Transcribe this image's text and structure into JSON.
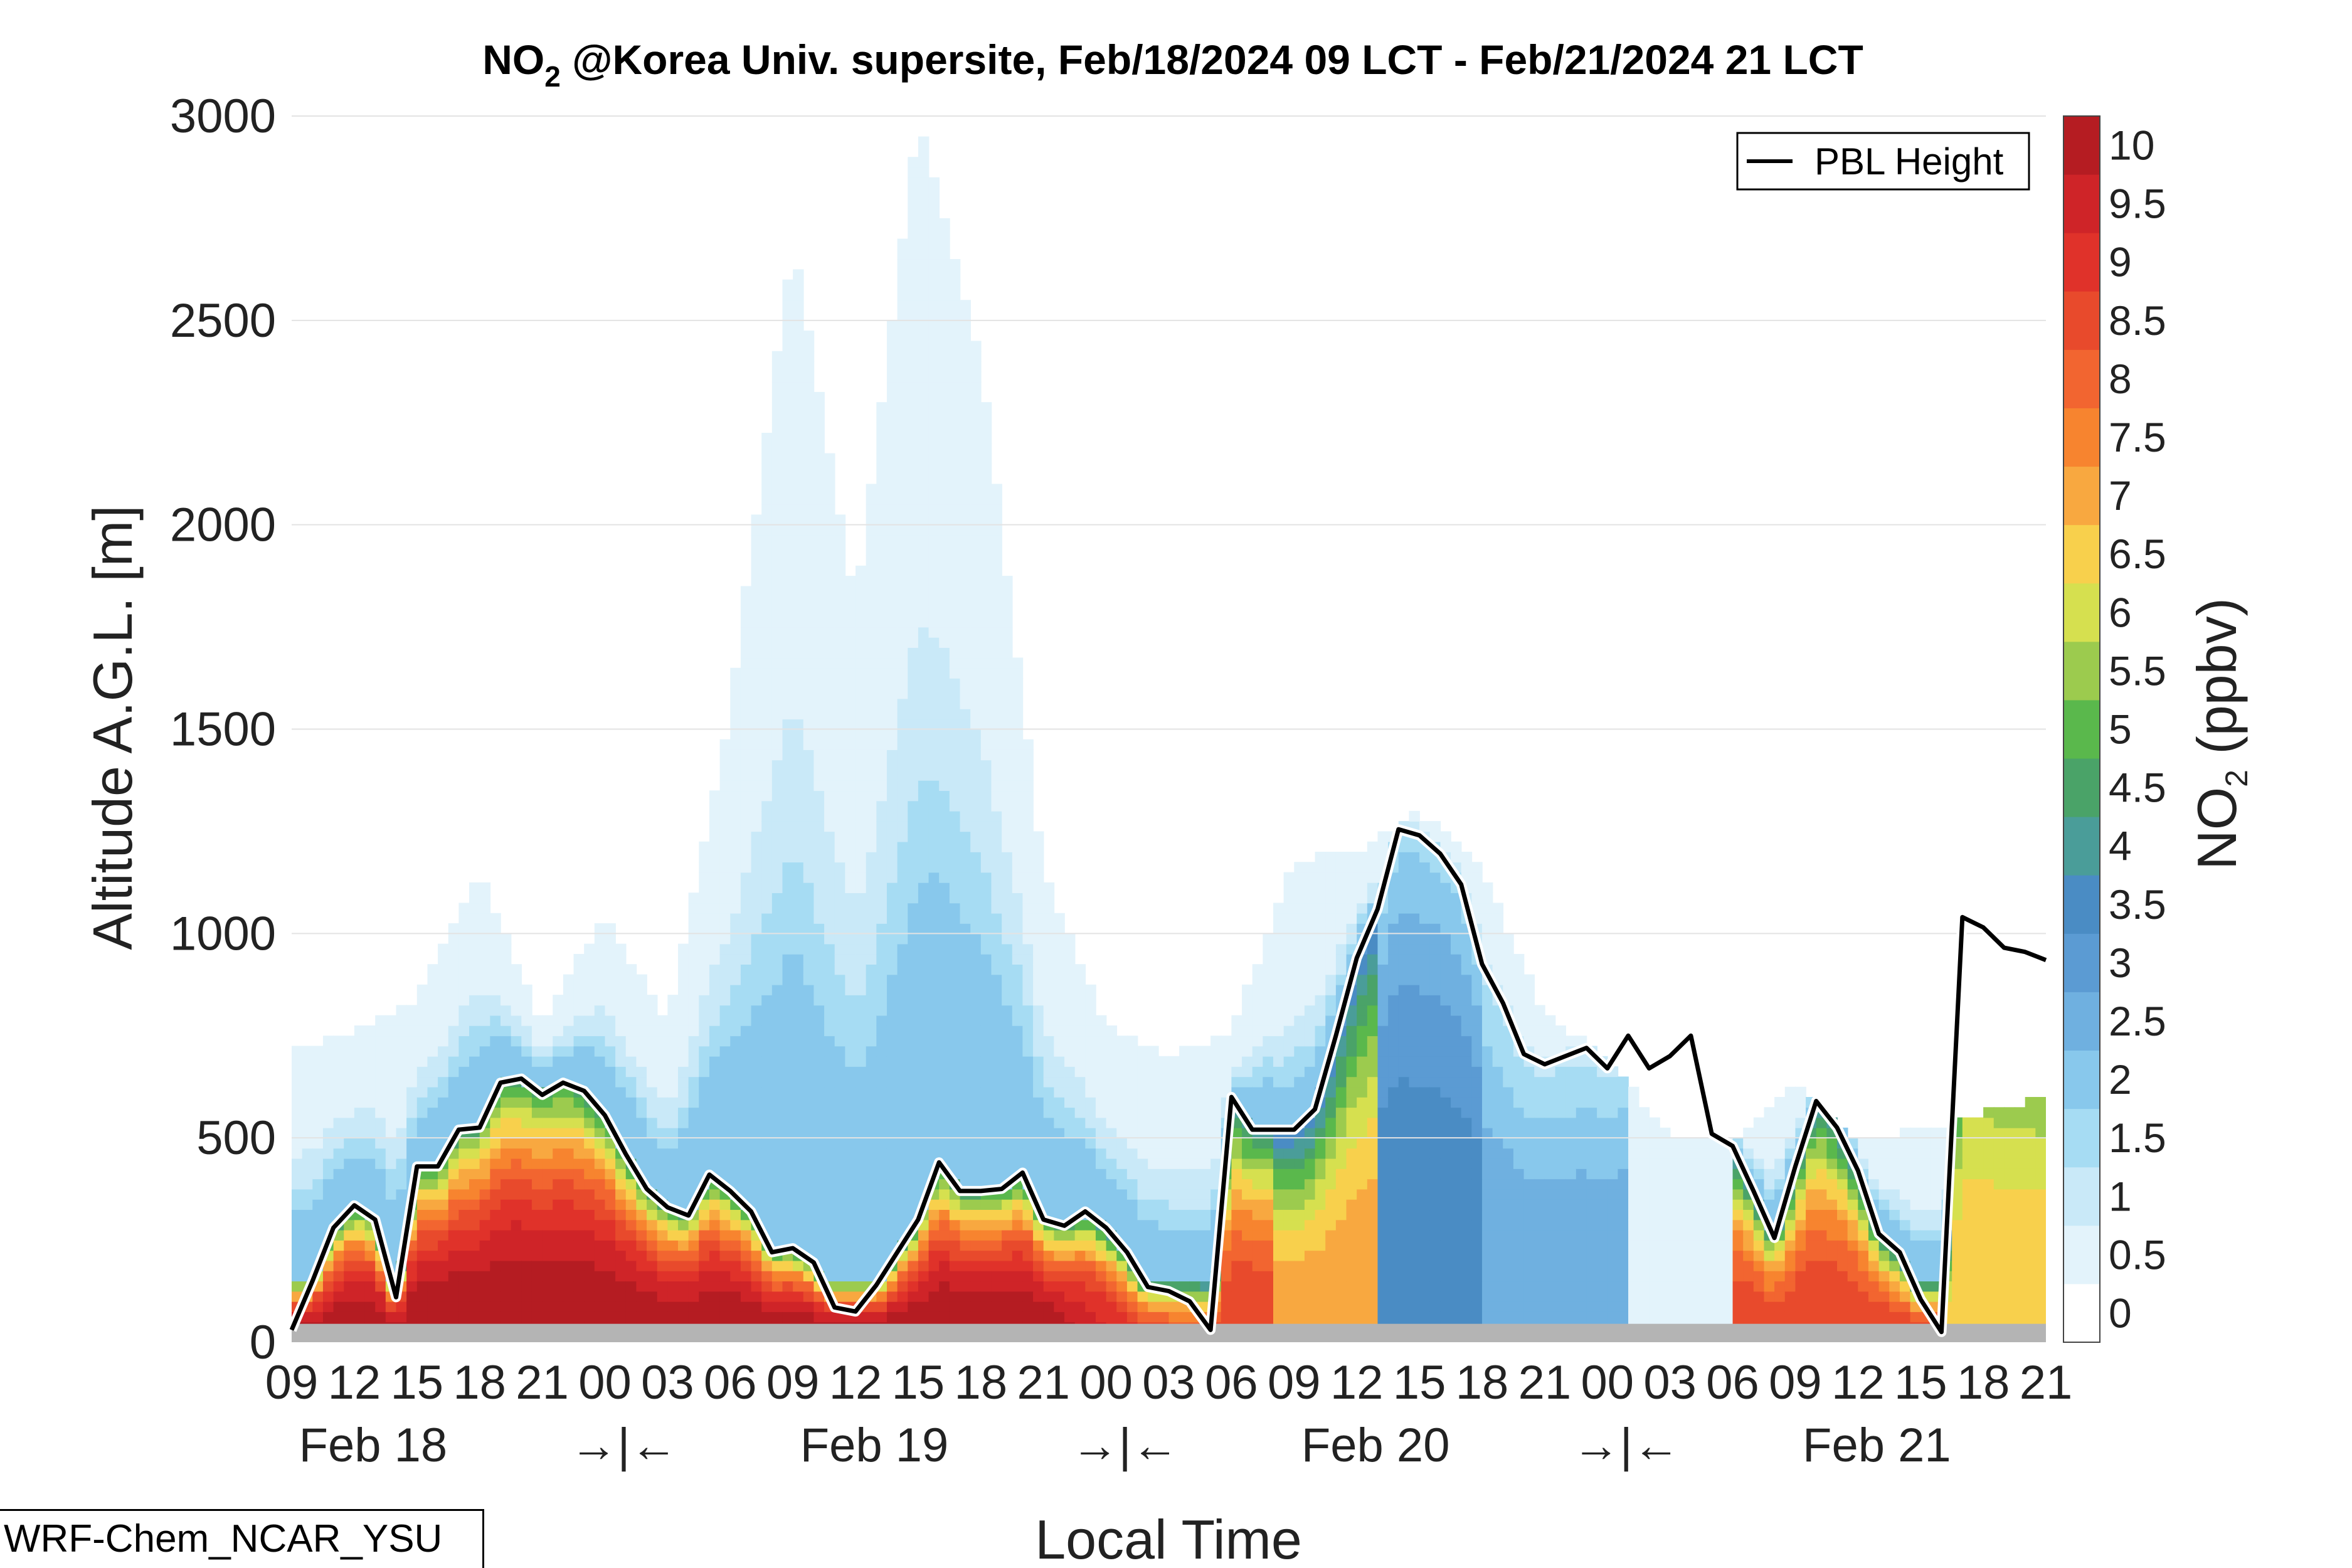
{
  "chart_data": {
    "type": "heatmap",
    "title_main": "NO",
    "title_sub": "2",
    "title_rest": " @Korea Univ. supersite, Feb/18/2024 09 LCT - Feb/21/2024 21 LCT",
    "xlabel": "Local Time",
    "ylabel": "Altitude A.G.L. [m]",
    "ylim": [
      0,
      3000
    ],
    "y_ticks": [
      "0",
      "500",
      "1000",
      "1500",
      "2000",
      "2500",
      "3000"
    ],
    "x_tick_labels": [
      "09",
      "12",
      "15",
      "18",
      "21",
      "00",
      "03",
      "06",
      "09",
      "12",
      "15",
      "18",
      "21",
      "00",
      "03",
      "06",
      "09",
      "12",
      "15",
      "18",
      "21",
      "00",
      "03",
      "06",
      "09",
      "12",
      "15",
      "18",
      "21"
    ],
    "date_labels": [
      {
        "label": "Feb 18",
        "hour": 3
      },
      {
        "label": "→|←",
        "hour": 15
      },
      {
        "label": "Feb 19",
        "hour": 27
      },
      {
        "label": "→|←",
        "hour": 39
      },
      {
        "label": "Feb 20",
        "hour": 51
      },
      {
        "label": "→|←",
        "hour": 63
      },
      {
        "label": "Feb 21",
        "hour": 75
      }
    ],
    "colorbar": {
      "label_main": "NO",
      "label_sub": "2",
      "label_rest": " (ppbv)",
      "min": 0,
      "max": 10.5,
      "tick_labels": [
        "0",
        "0.5",
        "1",
        "1.5",
        "2",
        "2.5",
        "3",
        "3.5",
        "4",
        "4.5",
        "5",
        "5.5",
        "6",
        "6.5",
        "7",
        "7.5",
        "8",
        "8.5",
        "9",
        "9.5",
        "10"
      ],
      "colors": [
        "#ffffff",
        "#e3f3fb",
        "#c9e9f8",
        "#a6dcf3",
        "#88c8ec",
        "#6fb0e0",
        "#5b9bd3",
        "#4a8cc4",
        "#4a9d99",
        "#4aa368",
        "#5ab84c",
        "#9ccb4e",
        "#d6e04f",
        "#f8d04c",
        "#f8a840",
        "#f7842f",
        "#f26530",
        "#e84a2c",
        "#e0322a",
        "#cf2428",
        "#b51c22"
      ]
    },
    "legend": {
      "position": "top-right",
      "entries": [
        "PBL Height"
      ]
    },
    "pbl_height": {
      "name": "PBL Height",
      "hours": [
        0,
        1,
        2,
        3,
        4,
        5,
        6,
        7,
        8,
        9,
        10,
        11,
        12,
        13,
        14,
        15,
        16,
        17,
        18,
        19,
        20,
        21,
        22,
        23,
        24,
        25,
        26,
        27,
        28,
        29,
        30,
        31,
        32,
        33,
        34,
        35,
        36,
        37,
        38,
        39,
        40,
        41,
        42,
        43,
        44,
        45,
        46,
        47,
        48,
        49,
        50,
        51,
        52,
        53,
        54,
        55,
        56,
        57,
        58,
        59,
        60,
        61,
        62,
        63,
        64,
        65,
        66,
        67,
        68,
        69,
        70,
        71,
        72,
        73,
        74,
        75,
        76,
        77,
        78,
        79,
        80,
        81,
        82,
        83,
        84
      ],
      "values": [
        30,
        150,
        280,
        335,
        300,
        110,
        430,
        430,
        520,
        525,
        635,
        645,
        605,
        635,
        615,
        555,
        460,
        375,
        330,
        310,
        410,
        370,
        320,
        220,
        230,
        195,
        85,
        75,
        140,
        220,
        300,
        440,
        370,
        370,
        375,
        415,
        300,
        285,
        320,
        280,
        220,
        135,
        125,
        100,
        30,
        600,
        520,
        520,
        520,
        570,
        750,
        940,
        1060,
        1255,
        1240,
        1195,
        1120,
        925,
        830,
        705,
        680,
        700,
        720,
        670,
        750,
        670,
        700,
        750,
        510,
        480,
        370,
        255,
        430,
        590,
        525,
        420,
        265,
        220,
        105,
        25,
        1040,
        1015,
        965,
        955,
        935
      ]
    },
    "no2_profiles": {
      "description_hours": [
        0,
        3,
        6,
        9,
        12,
        15,
        18,
        21,
        24,
        27,
        30,
        33,
        36,
        39,
        42,
        45,
        48,
        51,
        54,
        57,
        60,
        63,
        66,
        69,
        72,
        75,
        78,
        81,
        84
      ],
      "max_altitude": [
        720,
        760,
        840,
        1150,
        780,
        1050,
        780,
        1550,
        2700,
        1800,
        3000,
        2400,
        1150,
        780,
        700,
        760,
        1180,
        1200,
        1300,
        1150,
        800,
        700,
        500,
        500,
        640,
        500,
        520,
        560,
        600
      ]
    }
  },
  "credit": "WRF-Chem_NCAR_YSU"
}
